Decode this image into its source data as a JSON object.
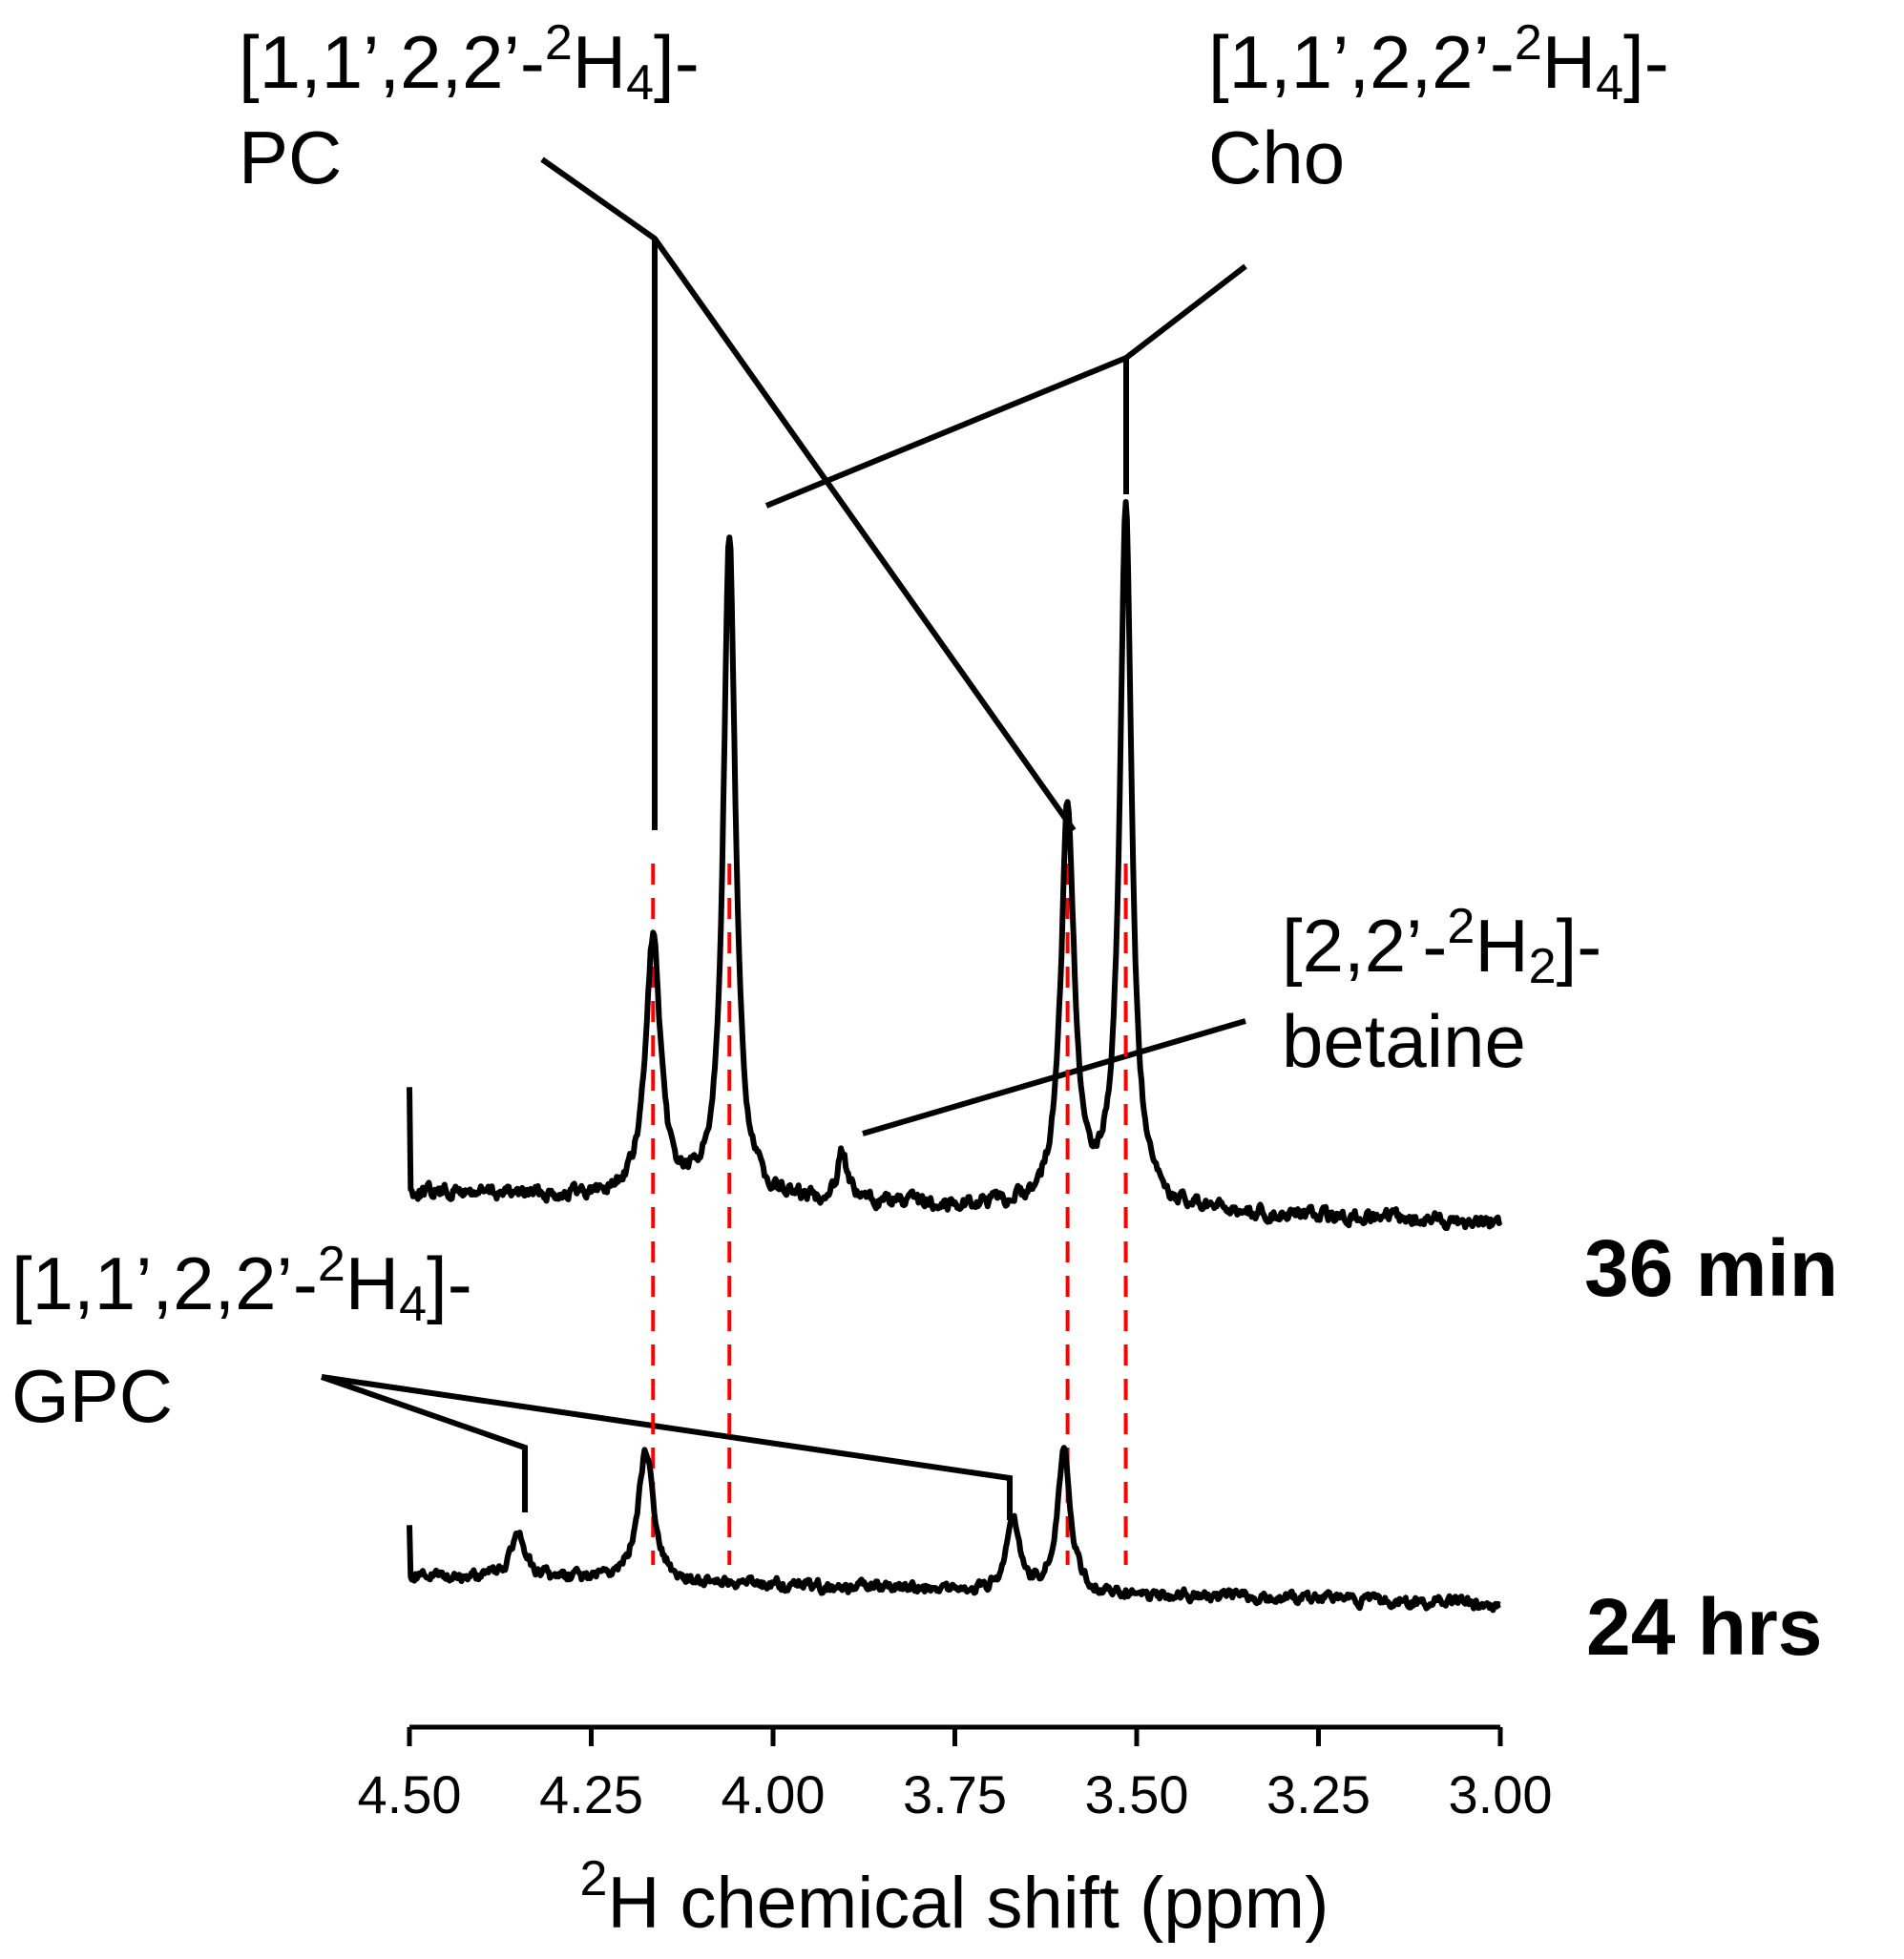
{
  "chart_data": {
    "type": "line",
    "xlabel": {
      "sup": "2",
      "text": "H chemical shift (ppm)"
    },
    "xlim": [
      4.5,
      3.0
    ],
    "x_reversed": true,
    "x_ticks": [
      "4.50",
      "4.25",
      "4.00",
      "3.75",
      "3.50",
      "3.25",
      "3.00"
    ],
    "x_tick_values": [
      4.5,
      4.25,
      4.0,
      3.75,
      3.5,
      3.25,
      3.0
    ],
    "series": [
      {
        "name": "36 min",
        "baseline_level": 0.55,
        "peaks": [
          {
            "ppm": 4.165,
            "height": 3.0,
            "width": 0.012
          },
          {
            "ppm": 4.06,
            "height": 7.7,
            "width": 0.01
          },
          {
            "ppm": 3.905,
            "height": 0.6,
            "width": 0.008
          },
          {
            "ppm": 3.595,
            "height": 4.6,
            "width": 0.011
          },
          {
            "ppm": 3.515,
            "height": 8.1,
            "width": 0.01
          }
        ]
      },
      {
        "name": "24 hrs",
        "baseline_level": 0.4,
        "peaks": [
          {
            "ppm": 4.35,
            "height": 0.6,
            "width": 0.011
          },
          {
            "ppm": 4.175,
            "height": 1.6,
            "width": 0.013
          },
          {
            "ppm": 3.67,
            "height": 0.9,
            "width": 0.01
          },
          {
            "ppm": 3.6,
            "height": 1.7,
            "width": 0.011
          }
        ]
      }
    ],
    "reference_lines_ppm": [
      4.165,
      4.06,
      3.595,
      3.515
    ],
    "reference_line_color": "#ff0000",
    "trace_color": "#000000",
    "annotations": [
      {
        "line1": [
          "[1,1’,2,2’-",
          "2",
          "H",
          "4",
          "]-"
        ],
        "line2": "PC",
        "targets_ppm": [
          4.165,
          3.595
        ]
      },
      {
        "line1": [
          "[1,1’,2,2’-",
          "2",
          "H",
          "4",
          "]-"
        ],
        "line2": "Cho",
        "targets_ppm": [
          4.06,
          3.515
        ]
      },
      {
        "line1": [
          "[2,2’-",
          "2",
          "H",
          "2",
          "]-"
        ],
        "line2": "betaine",
        "targets_ppm": [
          3.88
        ]
      },
      {
        "line1": [
          "[1,1’,2,2’-",
          "2",
          "H",
          "4",
          "]-"
        ],
        "line2": "GPC",
        "targets_ppm": [
          4.35,
          3.67
        ]
      }
    ]
  }
}
